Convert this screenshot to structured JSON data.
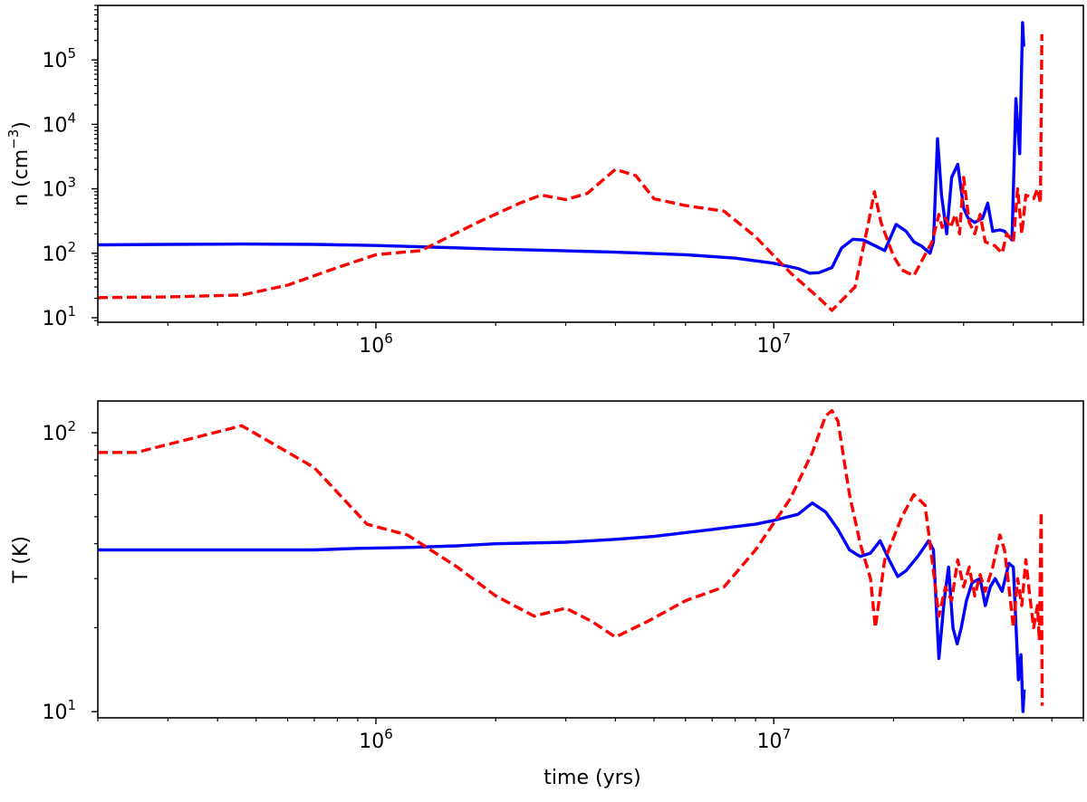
{
  "chart_data": [
    {
      "type": "line",
      "xlabel": "",
      "ylabel": "n (cm⁻³)",
      "xscale": "log",
      "yscale": "log",
      "xlim": [
        200000,
        60000000
      ],
      "ylim": [
        8.5,
        700000
      ],
      "x_ticks": [
        {
          "base": "10",
          "exp": "6",
          "value": 1000000
        },
        {
          "base": "10",
          "exp": "7",
          "value": 10000000
        }
      ],
      "y_ticks": [
        {
          "base": "10",
          "exp": "1",
          "value": 10
        },
        {
          "base": "10",
          "exp": "2",
          "value": 100
        },
        {
          "base": "10",
          "exp": "3",
          "value": 1000
        },
        {
          "base": "10",
          "exp": "4",
          "value": 10000
        },
        {
          "base": "10",
          "exp": "5",
          "value": 100000
        }
      ],
      "grid": false,
      "series": [
        {
          "color": "#0000ff",
          "style": "solid",
          "points": [
            [
              200000,
              135
            ],
            [
              300000,
              137
            ],
            [
              460000,
              139
            ],
            [
              700000,
              137
            ],
            [
              1000000,
              132
            ],
            [
              1500000,
              123
            ],
            [
              2000000,
              116
            ],
            [
              3000000,
              109
            ],
            [
              4000000,
              104
            ],
            [
              6000000,
              95
            ],
            [
              8000000,
              84
            ],
            [
              10000000,
              70
            ],
            [
              11500000,
              58
            ],
            [
              12300000,
              49
            ],
            [
              13000000,
              50
            ],
            [
              14000000,
              60
            ],
            [
              14800000,
              120
            ],
            [
              15800000,
              165
            ],
            [
              16800000,
              160
            ],
            [
              18000000,
              130
            ],
            [
              19000000,
              110
            ],
            [
              20300000,
              280
            ],
            [
              21500000,
              220
            ],
            [
              22500000,
              150
            ],
            [
              23500000,
              130
            ],
            [
              24700000,
              100
            ],
            [
              25200000,
              150
            ],
            [
              25800000,
              6000
            ],
            [
              26400000,
              800
            ],
            [
              27200000,
              200
            ],
            [
              28000000,
              1500
            ],
            [
              29000000,
              2400
            ],
            [
              30000000,
              500
            ],
            [
              30800000,
              350
            ],
            [
              32000000,
              300
            ],
            [
              33500000,
              350
            ],
            [
              34500000,
              600
            ],
            [
              35500000,
              220
            ],
            [
              37000000,
              230
            ],
            [
              38000000,
              220
            ],
            [
              39700000,
              160
            ],
            [
              40600000,
              25000
            ],
            [
              41500000,
              3500
            ],
            [
              42200000,
              380000
            ],
            [
              42500000,
              160000
            ]
          ]
        },
        {
          "color": "#ff0000",
          "style": "dashed",
          "points": [
            [
              200000,
              20.5
            ],
            [
              300000,
              21
            ],
            [
              460000,
              22.5
            ],
            [
              600000,
              32
            ],
            [
              800000,
              60
            ],
            [
              1000000,
              95
            ],
            [
              1300000,
              110
            ],
            [
              1800000,
              300
            ],
            [
              2300000,
              600
            ],
            [
              2600000,
              800
            ],
            [
              3000000,
              680
            ],
            [
              3400000,
              850
            ],
            [
              4000000,
              2000
            ],
            [
              4500000,
              1600
            ],
            [
              5000000,
              700
            ],
            [
              6000000,
              550
            ],
            [
              7500000,
              450
            ],
            [
              9000000,
              180
            ],
            [
              11000000,
              50
            ],
            [
              13000000,
              20
            ],
            [
              14000000,
              13
            ],
            [
              16000000,
              30
            ],
            [
              17300000,
              300
            ],
            [
              17900000,
              900
            ],
            [
              18600000,
              300
            ],
            [
              20000000,
              90
            ],
            [
              21000000,
              55
            ],
            [
              22500000,
              45
            ],
            [
              24000000,
              95
            ],
            [
              25000000,
              150
            ],
            [
              26000000,
              400
            ],
            [
              26500000,
              250
            ],
            [
              27000000,
              350
            ],
            [
              27800000,
              250
            ],
            [
              28600000,
              400
            ],
            [
              29300000,
              200
            ],
            [
              30000000,
              1500
            ],
            [
              31000000,
              300
            ],
            [
              32000000,
              200
            ],
            [
              33000000,
              400
            ],
            [
              34000000,
              150
            ],
            [
              36000000,
              130
            ],
            [
              37500000,
              100
            ],
            [
              38500000,
              200
            ],
            [
              40000000,
              150
            ],
            [
              41000000,
              1000
            ],
            [
              42000000,
              200
            ],
            [
              43000000,
              800
            ],
            [
              45000000,
              700
            ],
            [
              46000000,
              1000
            ],
            [
              46800000,
              600
            ],
            [
              47200000,
              250000
            ]
          ]
        }
      ]
    },
    {
      "type": "line",
      "xlabel": "time (yrs)",
      "ylabel": "T (K)",
      "xscale": "log",
      "yscale": "log",
      "xlim": [
        200000,
        60000000
      ],
      "ylim": [
        9.5,
        130
      ],
      "x_ticks": [
        {
          "base": "10",
          "exp": "6",
          "value": 1000000
        },
        {
          "base": "10",
          "exp": "7",
          "value": 10000000
        }
      ],
      "y_ticks": [
        {
          "base": "10",
          "exp": "1",
          "value": 10
        },
        {
          "base": "10",
          "exp": "2",
          "value": 100
        }
      ],
      "grid": false,
      "series": [
        {
          "color": "#0000ff",
          "style": "solid",
          "points": [
            [
              200000,
              38
            ],
            [
              400000,
              38
            ],
            [
              700000,
              38
            ],
            [
              900000,
              38.5
            ],
            [
              1200000,
              38.8
            ],
            [
              1600000,
              39.3
            ],
            [
              2000000,
              40
            ],
            [
              3000000,
              40.5
            ],
            [
              4000000,
              41.5
            ],
            [
              5000000,
              42.5
            ],
            [
              7000000,
              45
            ],
            [
              9000000,
              47
            ],
            [
              10000000,
              48.5
            ],
            [
              11500000,
              51
            ],
            [
              12500000,
              56
            ],
            [
              13500000,
              52
            ],
            [
              14500000,
              45
            ],
            [
              15500000,
              38
            ],
            [
              16500000,
              36
            ],
            [
              17500000,
              37
            ],
            [
              18500000,
              41
            ],
            [
              19500000,
              35
            ],
            [
              20500000,
              30.5
            ],
            [
              21500000,
              32
            ],
            [
              23000000,
              36
            ],
            [
              24500000,
              41
            ],
            [
              25200000,
              38
            ],
            [
              26000000,
              15.5
            ],
            [
              26800000,
              25
            ],
            [
              27500000,
              33
            ],
            [
              28200000,
              20
            ],
            [
              28900000,
              17.5
            ],
            [
              29600000,
              20
            ],
            [
              30500000,
              25
            ],
            [
              31500000,
              29
            ],
            [
              33000000,
              30
            ],
            [
              34000000,
              24
            ],
            [
              35000000,
              28
            ],
            [
              36000000,
              30
            ],
            [
              37500000,
              27
            ],
            [
              39000000,
              34
            ],
            [
              40000000,
              33
            ],
            [
              41200000,
              13
            ],
            [
              41800000,
              16
            ],
            [
              42300000,
              10
            ],
            [
              42600000,
              12
            ]
          ]
        },
        {
          "color": "#ff0000",
          "style": "dashed",
          "points": [
            [
              200000,
              85
            ],
            [
              250000,
              85
            ],
            [
              460000,
              106
            ],
            [
              700000,
              75
            ],
            [
              950000,
              47
            ],
            [
              1200000,
              43
            ],
            [
              1600000,
              33
            ],
            [
              2000000,
              26
            ],
            [
              2500000,
              22
            ],
            [
              3000000,
              23.5
            ],
            [
              3500000,
              21
            ],
            [
              4000000,
              18.5
            ],
            [
              4800000,
              21
            ],
            [
              6000000,
              25
            ],
            [
              7500000,
              28
            ],
            [
              9000000,
              38
            ],
            [
              11000000,
              58
            ],
            [
              12500000,
              85
            ],
            [
              13500000,
              115
            ],
            [
              14000000,
              120
            ],
            [
              14500000,
              110
            ],
            [
              15500000,
              60
            ],
            [
              16500000,
              40
            ],
            [
              17500000,
              30
            ],
            [
              18000000,
              20
            ],
            [
              19000000,
              35
            ],
            [
              21000000,
              50
            ],
            [
              22500000,
              60
            ],
            [
              24000000,
              55
            ],
            [
              25000000,
              35
            ],
            [
              26000000,
              22
            ],
            [
              27000000,
              28
            ],
            [
              28000000,
              25
            ],
            [
              29000000,
              35
            ],
            [
              30000000,
              28
            ],
            [
              31000000,
              33
            ],
            [
              32000000,
              26
            ],
            [
              33000000,
              31
            ],
            [
              34000000,
              27
            ],
            [
              35500000,
              33
            ],
            [
              37000000,
              43
            ],
            [
              38000000,
              38
            ],
            [
              39000000,
              28
            ],
            [
              40000000,
              20
            ],
            [
              41000000,
              30
            ],
            [
              42000000,
              24
            ],
            [
              43000000,
              35
            ],
            [
              44000000,
              26
            ],
            [
              45000000,
              20
            ],
            [
              46000000,
              24
            ],
            [
              46500000,
              18
            ],
            [
              47000000,
              52
            ],
            [
              47300000,
              10.5
            ]
          ]
        }
      ]
    }
  ]
}
